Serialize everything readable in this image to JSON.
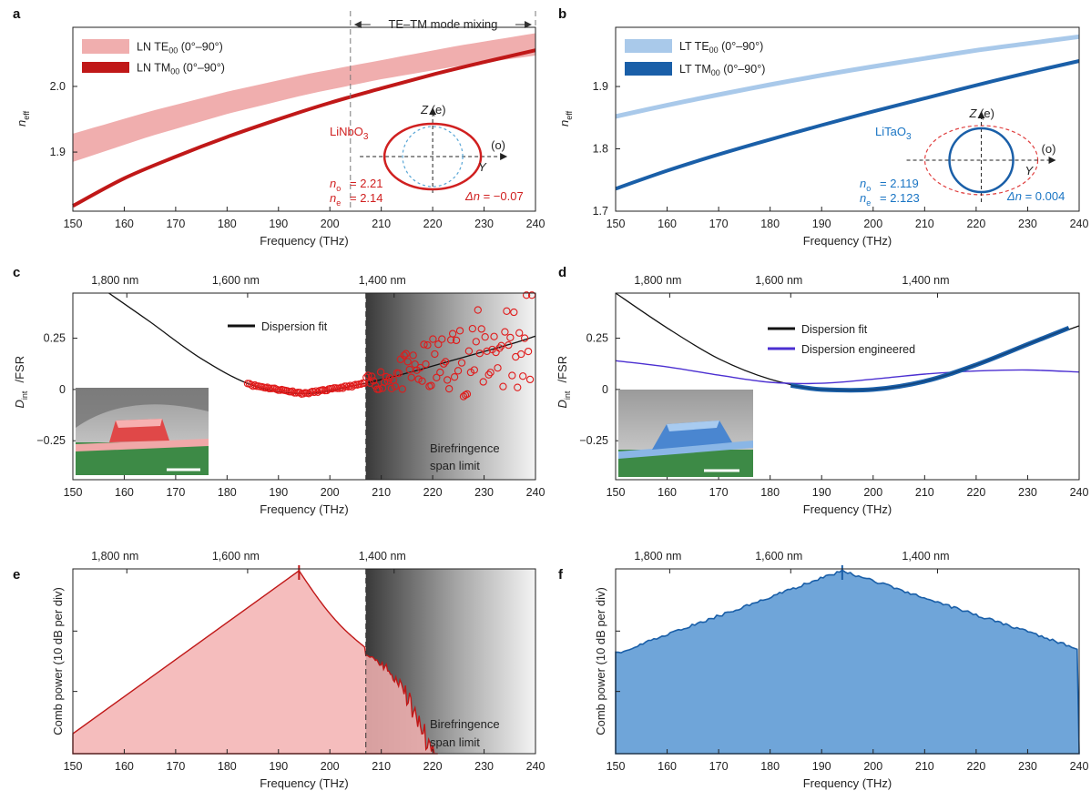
{
  "panels": [
    {
      "id": "a",
      "label": "a",
      "chart_data": {
        "type": "line",
        "xlabel": "Frequency (THz)",
        "ylabel": "n_eff",
        "xlim": [
          150,
          240
        ],
        "ylim": [
          1.81,
          2.09
        ],
        "xticks": [
          150,
          160,
          170,
          180,
          190,
          200,
          210,
          220,
          230,
          240
        ],
        "yticks": [
          1.9,
          2.0
        ],
        "series": [
          {
            "name": "LN TE00 (0°–90°)",
            "style": "band",
            "color": "#f0aeae",
            "x": [
              150,
              165,
              180,
              195,
              210,
              225,
              240
            ],
            "lower": [
              1.885,
              1.924,
              1.958,
              1.987,
              2.011,
              2.031,
              2.047
            ],
            "upper": [
              1.928,
              1.962,
              1.992,
              2.018,
              2.04,
              2.062,
              2.081
            ]
          },
          {
            "name": "LN TM00 (0°–90°)",
            "style": "line",
            "color": "#c01818",
            "x": [
              150,
              160,
              170,
              180,
              190,
              200,
              210,
              220,
              230,
              240
            ],
            "y": [
              1.818,
              1.86,
              1.893,
              1.923,
              1.95,
              1.975,
              1.997,
              2.018,
              2.037,
              2.055
            ]
          }
        ],
        "annotations": {
          "region_label": "TE–TM mode mixing",
          "region_start": 204,
          "material": "LiNbO3",
          "no": "n_o = 2.21",
          "ne": "n_e = 2.14",
          "dn": "Δn = −0.07",
          "z_axis": "Z (e)",
          "y_axis": "Y (o)"
        }
      }
    },
    {
      "id": "b",
      "label": "b",
      "chart_data": {
        "type": "line",
        "xlabel": "Frequency (THz)",
        "ylabel": "n_eff",
        "xlim": [
          150,
          240
        ],
        "ylim": [
          1.7,
          1.995
        ],
        "xticks": [
          150,
          160,
          170,
          180,
          190,
          200,
          210,
          220,
          230,
          240
        ],
        "yticks": [
          1.7,
          1.8,
          1.9
        ],
        "series": [
          {
            "name": "LT TE00 (0°–90°)",
            "style": "line",
            "color": "#a9c9ea",
            "x": [
              150,
              160,
              170,
              180,
              190,
              200,
              210,
              220,
              230,
              240
            ],
            "y": [
              1.852,
              1.87,
              1.887,
              1.903,
              1.918,
              1.932,
              1.945,
              1.958,
              1.969,
              1.98
            ]
          },
          {
            "name": "LT TM00 (0°–90°)",
            "style": "line",
            "color": "#1a5fa8",
            "x": [
              150,
              160,
              170,
              180,
              190,
              200,
              210,
              220,
              230,
              240
            ],
            "y": [
              1.736,
              1.765,
              1.791,
              1.815,
              1.838,
              1.86,
              1.881,
              1.902,
              1.922,
              1.941
            ]
          }
        ],
        "annotations": {
          "material": "LiTaO3",
          "no": "n_o = 2.119",
          "ne": "n_e = 2.123",
          "dn": "Δn = 0.004",
          "z_axis": "Z (e)",
          "y_axis": "Y (o)"
        }
      }
    },
    {
      "id": "c",
      "label": "c",
      "chart_data": {
        "type": "scatter",
        "xlabel": "Frequency (THz)",
        "ylabel": "D_int/FSR",
        "xlim": [
          150,
          240
        ],
        "ylim": [
          -0.44,
          0.47
        ],
        "xticks": [
          150,
          160,
          170,
          180,
          190,
          200,
          210,
          220,
          230,
          240
        ],
        "yticks": [
          -0.25,
          0,
          0.25
        ],
        "ytick_labels": [
          "−0.25",
          "0",
          "0.25"
        ],
        "top_ticks": [
          {
            "x": 160.5,
            "label": "1,800 nm"
          },
          {
            "x": 184,
            "label": "1,600 nm"
          },
          {
            "x": 212.5,
            "label": "1,400 nm"
          }
        ],
        "series": [
          {
            "name": "Dispension fit",
            "style": "line",
            "color": "#111111",
            "x": [
              157,
              165,
              175,
              185,
              195,
              205,
              215,
              225,
              235,
              240
            ],
            "y": [
              0.47,
              0.33,
              0.15,
              0.02,
              -0.02,
              0.02,
              0.08,
              0.15,
              0.22,
              0.26
            ]
          },
          {
            "name": "measured",
            "style": "markers",
            "color": "#e01b1b",
            "x_range": [
              184,
              240
            ],
            "note": "open circles, scatter grows beyond 207 THz"
          }
        ],
        "shaded_region": {
          "start": 207,
          "end": 240,
          "label": "Birefringence span limit"
        },
        "legend": [
          "Dispersion fit"
        ]
      }
    },
    {
      "id": "d",
      "label": "d",
      "chart_data": {
        "type": "line",
        "xlabel": "Frequency (THz)",
        "ylabel": "D_int/FSR",
        "xlim": [
          150,
          240
        ],
        "ylim": [
          -0.44,
          0.47
        ],
        "xticks": [
          150,
          160,
          170,
          180,
          190,
          200,
          210,
          220,
          230,
          240
        ],
        "yticks": [
          -0.25,
          0,
          0.25
        ],
        "ytick_labels": [
          "−0.25",
          "0",
          "0.25"
        ],
        "top_ticks": [
          {
            "x": 160.5,
            "label": "1,800 nm"
          },
          {
            "x": 184,
            "label": "1,600 nm"
          },
          {
            "x": 212.5,
            "label": "1,400 nm"
          }
        ],
        "series": [
          {
            "name": "Dispersion fit",
            "style": "line",
            "color": "#111111",
            "x": [
              150,
              160,
              170,
              180,
              190,
              200,
              210,
              220,
              230,
              240
            ],
            "y": [
              0.47,
              0.3,
              0.15,
              0.05,
              0.0,
              0.0,
              0.04,
              0.12,
              0.22,
              0.31
            ]
          },
          {
            "name": "Dispersion engineered",
            "style": "line",
            "color": "#4b2fd1",
            "x": [
              150,
              160,
              170,
              180,
              190,
              200,
              210,
              220,
              230,
              240
            ],
            "y": [
              0.14,
              0.11,
              0.07,
              0.035,
              0.03,
              0.05,
              0.075,
              0.09,
              0.095,
              0.085
            ]
          },
          {
            "name": "measured",
            "style": "thick-line",
            "color": "#1a5fa8",
            "x": [
              184,
              190,
              200,
              210,
              220,
              230,
              238
            ],
            "y": [
              0.02,
              0.0,
              0.0,
              0.04,
              0.12,
              0.22,
              0.3
            ]
          }
        ],
        "legend": [
          "Dispersion fit",
          "Dispersion engineered"
        ]
      }
    },
    {
      "id": "e",
      "label": "e",
      "chart_data": {
        "type": "area",
        "xlabel": "Frequency (THz)",
        "ylabel": "Comb power (10 dB per div)",
        "xlim": [
          150,
          240
        ],
        "xticks": [
          150,
          160,
          170,
          180,
          190,
          200,
          210,
          220,
          230,
          240
        ],
        "top_ticks": [
          {
            "x": 160.5,
            "label": "1,800 nm"
          },
          {
            "x": 184,
            "label": "1,600 nm"
          },
          {
            "x": 212.5,
            "label": "1,400 nm"
          }
        ],
        "envelope": {
          "peak_x": 194,
          "color": "#c01818",
          "fill": "#f3b1b1",
          "cutoff_x": 221
        },
        "shaded_region": {
          "start": 207,
          "end": 240,
          "label": "Birefringence span limit"
        }
      }
    },
    {
      "id": "f",
      "label": "f",
      "chart_data": {
        "type": "area",
        "xlabel": "Frequency (THz)",
        "ylabel": "Comb power (10 dB per div)",
        "xlim": [
          150,
          240
        ],
        "xticks": [
          150,
          160,
          170,
          180,
          190,
          200,
          210,
          220,
          230,
          240
        ],
        "top_ticks": [
          {
            "x": 160.5,
            "label": "1,800 nm"
          },
          {
            "x": 184,
            "label": "1,600 nm"
          },
          {
            "x": 212.5,
            "label": "1,400 nm"
          }
        ],
        "envelope": {
          "peak_x": 194,
          "color": "#1a5fa8",
          "fill": "#6fa5d9",
          "cutoff_x": 240
        }
      }
    }
  ]
}
